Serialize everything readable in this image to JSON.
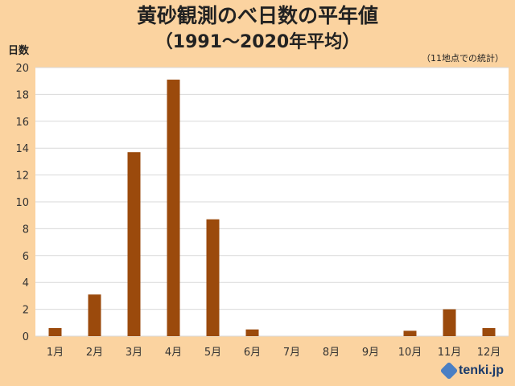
{
  "title": "黄砂観測のべ日数の平年値",
  "subtitle": "（1991～2020年平均）",
  "note": "（11地点での統計）",
  "logo_text": "tenki.jp",
  "chart_data": {
    "type": "bar",
    "title": "黄砂観測のべ日数の平年値",
    "subtitle": "（1991～2020年平均）",
    "ylabel": "日数",
    "xlabel": "",
    "categories": [
      "1月",
      "2月",
      "3月",
      "4月",
      "5月",
      "6月",
      "7月",
      "8月",
      "9月",
      "10月",
      "11月",
      "12月"
    ],
    "values": [
      0.6,
      3.1,
      13.7,
      19.1,
      8.7,
      0.5,
      0,
      0,
      0,
      0.4,
      2.0,
      0.6
    ],
    "ylim": [
      0,
      20
    ],
    "yticks": [
      "0",
      "2",
      "4",
      "6",
      "8",
      "10",
      "12",
      "14",
      "16",
      "18",
      "20"
    ],
    "grid": true,
    "legend": "none",
    "bar_color": "#9b4a0c",
    "plot_bg": "#ffffff",
    "grid_color": "#d9d9d9"
  }
}
